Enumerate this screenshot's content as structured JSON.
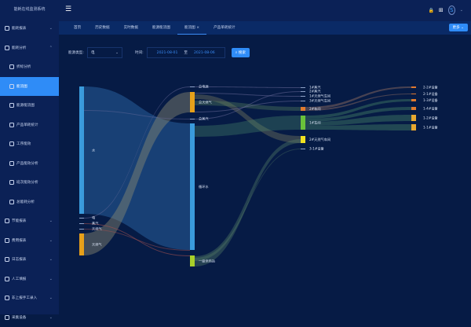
{
  "app": {
    "title": "能耗在线监测系统"
  },
  "sidebar": {
    "items": [
      {
        "label": "能耗报表",
        "chev": "⌄",
        "sub": false
      },
      {
        "label": "能耗分析",
        "chev": "⌃",
        "sub": false
      },
      {
        "label": "折标分析",
        "sub": true
      },
      {
        "label": "能流图",
        "sub": true,
        "active": true
      },
      {
        "label": "能源能流图",
        "sub": true
      },
      {
        "label": "产品单耗统计",
        "sub": true
      },
      {
        "label": "工序能效",
        "sub": true
      },
      {
        "label": "产品能效分析",
        "sub": true
      },
      {
        "label": "班次能效分析",
        "sub": true
      },
      {
        "label": "总能耗分析",
        "sub": true
      },
      {
        "label": "节能报表",
        "chev": "⌄",
        "sub": false
      },
      {
        "label": "费用报表",
        "chev": "⌄",
        "sub": false
      },
      {
        "label": "日志报表",
        "chev": "⌄",
        "sub": false
      },
      {
        "label": "人工填报",
        "chev": "⌄",
        "sub": false
      },
      {
        "label": "非上报手工录入",
        "chev": "⌄",
        "sub": false
      },
      {
        "label": "采集设备",
        "chev": "⌄",
        "sub": false
      }
    ]
  },
  "header": {
    "menu_icon": "☰",
    "lock_icon": "🔒",
    "grid_icon": "⊞",
    "avatar": "S",
    "chev": "⌄"
  },
  "tabs": [
    {
      "label": "首页"
    },
    {
      "label": "历史数据"
    },
    {
      "label": "实时数据"
    },
    {
      "label": "能源能流图"
    },
    {
      "label": "能流图 ×",
      "active": true
    },
    {
      "label": "产品单耗统计"
    }
  ],
  "more_button": "更多 ⌄",
  "filter": {
    "type_label": "能源类型:",
    "type_value": "电",
    "time_label": "时间:",
    "start": "2021-08-01",
    "to": "至",
    "end": "2021-08-06",
    "search": "⌕ 搜索"
  },
  "sankey": {
    "nodes": [
      "水",
      "电",
      "蒸汽",
      "天然气",
      "天然气",
      "总电源",
      "总天然气",
      "总蒸汽",
      "循环水",
      "一级供热站",
      "1#蒸汽",
      "2#蒸汽",
      "1#天然气车间",
      "3#天然气车间",
      "2#车间",
      "1#车间",
      "2#天然气车间",
      "3-1#设备",
      "2-2#设备",
      "2-1#设备",
      "1-3#设备",
      "1-4#设备",
      "1-2#设备",
      "1-1#设备"
    ],
    "colors": {
      "blue": "#3a9bdc",
      "orange": "#e6a01a",
      "green": "#6ac13a",
      "lime": "#a8d02a",
      "yellow": "#f0e020",
      "copper": "#e07a2f",
      "gold": "#e8a830"
    }
  }
}
